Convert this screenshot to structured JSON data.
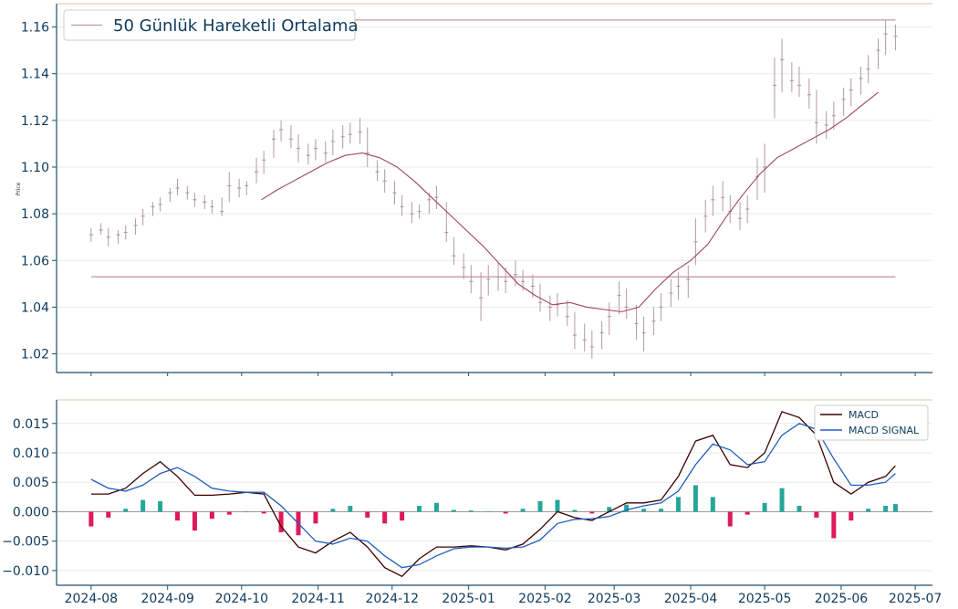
{
  "colors": {
    "axis": "#1f4e6e",
    "tick_text": "#0d3a5c",
    "grid": "#e9e9e9",
    "frame_top": "#d6c9a6",
    "candle": "#b39aa3",
    "ma": "#a0465f",
    "hline": "#c79aa8",
    "macd": "#3b0000",
    "signal": "#1f5fbf",
    "hist_pos": "#26a69a",
    "hist_neg": "#e0185c"
  },
  "chart_data": [
    {
      "type": "candlestick",
      "ylabel": "Price",
      "ylim": [
        1.012,
        1.17
      ],
      "yticks": [
        "1.02",
        "1.04",
        "1.06",
        "1.08",
        "1.10",
        "1.12",
        "1.14",
        "1.16"
      ],
      "ytick_values": [
        1.02,
        1.04,
        1.06,
        1.08,
        1.1,
        1.12,
        1.14,
        1.16
      ],
      "legend": {
        "label": "50 Günlük Hareketli Ortalama",
        "placement": "top-left"
      },
      "hlines": [
        1.053,
        1.163
      ],
      "moving_average": {
        "name": "50 Günlük Hareketli Ortalama",
        "dates": [
          "2024-10-09",
          "2024-10-15",
          "2024-10-22",
          "2024-10-29",
          "2024-11-05",
          "2024-11-12",
          "2024-11-19",
          "2024-11-26",
          "2024-12-03",
          "2024-12-10",
          "2024-12-17",
          "2024-12-24",
          "2024-12-31",
          "2025-01-07",
          "2025-01-14",
          "2025-01-21",
          "2025-01-28",
          "2025-02-04",
          "2025-02-11",
          "2025-02-18",
          "2025-02-25",
          "2025-03-04",
          "2025-03-11",
          "2025-03-18",
          "2025-03-25",
          "2025-04-01",
          "2025-04-08",
          "2025-04-15",
          "2025-04-22",
          "2025-04-29",
          "2025-05-06",
          "2025-05-13",
          "2025-05-20",
          "2025-05-27",
          "2025-06-03",
          "2025-06-10",
          "2025-06-16"
        ],
        "values": [
          1.086,
          1.09,
          1.094,
          1.098,
          1.102,
          1.105,
          1.106,
          1.104,
          1.1,
          1.094,
          1.087,
          1.08,
          1.073,
          1.066,
          1.058,
          1.05,
          1.045,
          1.041,
          1.042,
          1.04,
          1.039,
          1.038,
          1.04,
          1.048,
          1.055,
          1.06,
          1.067,
          1.078,
          1.088,
          1.097,
          1.104,
          1.108,
          1.112,
          1.116,
          1.121,
          1.127,
          1.132
        ]
      },
      "candles": [
        {
          "d": "2024-08-01",
          "h": 1.074,
          "l": 1.068,
          "c": 1.071
        },
        {
          "d": "2024-08-05",
          "h": 1.076,
          "l": 1.071,
          "c": 1.073
        },
        {
          "d": "2024-08-08",
          "h": 1.074,
          "l": 1.066,
          "c": 1.07
        },
        {
          "d": "2024-08-12",
          "h": 1.073,
          "l": 1.067,
          "c": 1.071
        },
        {
          "d": "2024-08-15",
          "h": 1.075,
          "l": 1.069,
          "c": 1.072
        },
        {
          "d": "2024-08-19",
          "h": 1.078,
          "l": 1.071,
          "c": 1.075
        },
        {
          "d": "2024-08-22",
          "h": 1.082,
          "l": 1.075,
          "c": 1.079
        },
        {
          "d": "2024-08-26",
          "h": 1.085,
          "l": 1.079,
          "c": 1.083
        },
        {
          "d": "2024-08-29",
          "h": 1.087,
          "l": 1.081,
          "c": 1.084
        },
        {
          "d": "2024-09-02",
          "h": 1.091,
          "l": 1.085,
          "c": 1.089
        },
        {
          "d": "2024-09-05",
          "h": 1.095,
          "l": 1.088,
          "c": 1.091
        },
        {
          "d": "2024-09-09",
          "h": 1.092,
          "l": 1.086,
          "c": 1.089
        },
        {
          "d": "2024-09-12",
          "h": 1.089,
          "l": 1.083,
          "c": 1.086
        },
        {
          "d": "2024-09-16",
          "h": 1.088,
          "l": 1.082,
          "c": 1.085
        },
        {
          "d": "2024-09-19",
          "h": 1.086,
          "l": 1.08,
          "c": 1.083
        },
        {
          "d": "2024-09-23",
          "h": 1.087,
          "l": 1.079,
          "c": 1.081
        },
        {
          "d": "2024-09-26",
          "h": 1.098,
          "l": 1.085,
          "c": 1.092
        },
        {
          "d": "2024-09-30",
          "h": 1.095,
          "l": 1.087,
          "c": 1.091
        },
        {
          "d": "2024-10-03",
          "h": 1.094,
          "l": 1.088,
          "c": 1.092
        },
        {
          "d": "2024-10-07",
          "h": 1.104,
          "l": 1.093,
          "c": 1.098
        },
        {
          "d": "2024-10-10",
          "h": 1.107,
          "l": 1.097,
          "c": 1.103
        },
        {
          "d": "2024-10-14",
          "h": 1.116,
          "l": 1.104,
          "c": 1.112
        },
        {
          "d": "2024-10-17",
          "h": 1.12,
          "l": 1.111,
          "c": 1.116
        },
        {
          "d": "2024-10-21",
          "h": 1.118,
          "l": 1.108,
          "c": 1.112
        },
        {
          "d": "2024-10-24",
          "h": 1.114,
          "l": 1.102,
          "c": 1.108
        },
        {
          "d": "2024-10-28",
          "h": 1.11,
          "l": 1.101,
          "c": 1.105
        },
        {
          "d": "2024-10-31",
          "h": 1.112,
          "l": 1.103,
          "c": 1.108
        },
        {
          "d": "2024-11-04",
          "h": 1.111,
          "l": 1.102,
          "c": 1.106
        },
        {
          "d": "2024-11-07",
          "h": 1.116,
          "l": 1.105,
          "c": 1.111
        },
        {
          "d": "2024-11-11",
          "h": 1.118,
          "l": 1.108,
          "c": 1.113
        },
        {
          "d": "2024-11-14",
          "h": 1.119,
          "l": 1.11,
          "c": 1.114
        },
        {
          "d": "2024-11-18",
          "h": 1.121,
          "l": 1.11,
          "c": 1.115
        },
        {
          "d": "2024-11-21",
          "h": 1.117,
          "l": 1.1,
          "c": 1.106
        },
        {
          "d": "2024-11-25",
          "h": 1.103,
          "l": 1.094,
          "c": 1.098
        },
        {
          "d": "2024-11-28",
          "h": 1.099,
          "l": 1.089,
          "c": 1.094
        },
        {
          "d": "2024-12-02",
          "h": 1.094,
          "l": 1.084,
          "c": 1.089
        },
        {
          "d": "2024-12-05",
          "h": 1.088,
          "l": 1.079,
          "c": 1.083
        },
        {
          "d": "2024-12-09",
          "h": 1.085,
          "l": 1.076,
          "c": 1.08
        },
        {
          "d": "2024-12-12",
          "h": 1.084,
          "l": 1.078,
          "c": 1.081
        },
        {
          "d": "2024-12-16",
          "h": 1.089,
          "l": 1.08,
          "c": 1.086
        },
        {
          "d": "2024-12-19",
          "h": 1.092,
          "l": 1.082,
          "c": 1.087
        },
        {
          "d": "2024-12-23",
          "h": 1.085,
          "l": 1.068,
          "c": 1.072
        },
        {
          "d": "2024-12-26",
          "h": 1.07,
          "l": 1.058,
          "c": 1.062
        },
        {
          "d": "2024-12-30",
          "h": 1.063,
          "l": 1.052,
          "c": 1.057
        },
        {
          "d": "2025-01-02",
          "h": 1.058,
          "l": 1.046,
          "c": 1.051
        },
        {
          "d": "2025-01-06",
          "h": 1.055,
          "l": 1.034,
          "c": 1.044
        },
        {
          "d": "2025-01-09",
          "h": 1.058,
          "l": 1.045,
          "c": 1.052
        },
        {
          "d": "2025-01-13",
          "h": 1.059,
          "l": 1.047,
          "c": 1.053
        },
        {
          "d": "2025-01-16",
          "h": 1.057,
          "l": 1.046,
          "c": 1.051
        },
        {
          "d": "2025-01-20",
          "h": 1.06,
          "l": 1.049,
          "c": 1.054
        },
        {
          "d": "2025-01-23",
          "h": 1.056,
          "l": 1.047,
          "c": 1.051
        },
        {
          "d": "2025-01-27",
          "h": 1.054,
          "l": 1.044,
          "c": 1.049
        },
        {
          "d": "2025-01-30",
          "h": 1.05,
          "l": 1.038,
          "c": 1.042
        },
        {
          "d": "2025-02-03",
          "h": 1.045,
          "l": 1.034,
          "c": 1.04
        },
        {
          "d": "2025-02-06",
          "h": 1.046,
          "l": 1.036,
          "c": 1.041
        },
        {
          "d": "2025-02-10",
          "h": 1.043,
          "l": 1.032,
          "c": 1.036
        },
        {
          "d": "2025-02-13",
          "h": 1.038,
          "l": 1.022,
          "c": 1.028
        },
        {
          "d": "2025-02-17",
          "h": 1.033,
          "l": 1.021,
          "c": 1.026
        },
        {
          "d": "2025-02-20",
          "h": 1.03,
          "l": 1.018,
          "c": 1.023
        },
        {
          "d": "2025-02-24",
          "h": 1.034,
          "l": 1.022,
          "c": 1.029
        },
        {
          "d": "2025-02-27",
          "h": 1.042,
          "l": 1.028,
          "c": 1.036
        },
        {
          "d": "2025-03-03",
          "h": 1.051,
          "l": 1.037,
          "c": 1.045
        },
        {
          "d": "2025-03-06",
          "h": 1.048,
          "l": 1.035,
          "c": 1.04
        },
        {
          "d": "2025-03-10",
          "h": 1.041,
          "l": 1.026,
          "c": 1.033
        },
        {
          "d": "2025-03-13",
          "h": 1.036,
          "l": 1.021,
          "c": 1.029
        },
        {
          "d": "2025-03-17",
          "h": 1.04,
          "l": 1.028,
          "c": 1.034
        },
        {
          "d": "2025-03-20",
          "h": 1.046,
          "l": 1.034,
          "c": 1.04
        },
        {
          "d": "2025-03-24",
          "h": 1.052,
          "l": 1.04,
          "c": 1.046
        },
        {
          "d": "2025-03-27",
          "h": 1.055,
          "l": 1.043,
          "c": 1.049
        },
        {
          "d": "2025-03-31",
          "h": 1.058,
          "l": 1.044,
          "c": 1.052
        },
        {
          "d": "2025-04-03",
          "h": 1.078,
          "l": 1.058,
          "c": 1.068
        },
        {
          "d": "2025-04-07",
          "h": 1.086,
          "l": 1.072,
          "c": 1.079
        },
        {
          "d": "2025-04-10",
          "h": 1.092,
          "l": 1.079,
          "c": 1.086
        },
        {
          "d": "2025-04-14",
          "h": 1.094,
          "l": 1.081,
          "c": 1.087
        },
        {
          "d": "2025-04-17",
          "h": 1.088,
          "l": 1.076,
          "c": 1.081
        },
        {
          "d": "2025-04-21",
          "h": 1.085,
          "l": 1.073,
          "c": 1.078
        },
        {
          "d": "2025-04-24",
          "h": 1.088,
          "l": 1.076,
          "c": 1.082
        },
        {
          "d": "2025-04-28",
          "h": 1.104,
          "l": 1.086,
          "c": 1.096
        },
        {
          "d": "2025-05-01",
          "h": 1.11,
          "l": 1.089,
          "c": 1.1
        },
        {
          "d": "2025-05-05",
          "h": 1.147,
          "l": 1.121,
          "c": 1.135
        },
        {
          "d": "2025-05-08",
          "h": 1.155,
          "l": 1.132,
          "c": 1.146
        },
        {
          "d": "2025-05-12",
          "h": 1.145,
          "l": 1.132,
          "c": 1.137
        },
        {
          "d": "2025-05-15",
          "h": 1.143,
          "l": 1.13,
          "c": 1.135
        },
        {
          "d": "2025-05-19",
          "h": 1.138,
          "l": 1.125,
          "c": 1.131
        },
        {
          "d": "2025-05-22",
          "h": 1.133,
          "l": 1.11,
          "c": 1.119
        },
        {
          "d": "2025-05-26",
          "h": 1.124,
          "l": 1.112,
          "c": 1.118
        },
        {
          "d": "2025-05-29",
          "h": 1.128,
          "l": 1.116,
          "c": 1.122
        },
        {
          "d": "2025-06-02",
          "h": 1.134,
          "l": 1.122,
          "c": 1.129
        },
        {
          "d": "2025-06-05",
          "h": 1.138,
          "l": 1.126,
          "c": 1.133
        },
        {
          "d": "2025-06-09",
          "h": 1.143,
          "l": 1.131,
          "c": 1.138
        },
        {
          "d": "2025-06-12",
          "h": 1.148,
          "l": 1.136,
          "c": 1.142
        },
        {
          "d": "2025-06-16",
          "h": 1.155,
          "l": 1.142,
          "c": 1.15
        },
        {
          "d": "2025-06-19",
          "h": 1.163,
          "l": 1.148,
          "c": 1.157
        },
        {
          "d": "2025-06-23",
          "h": 1.161,
          "l": 1.15,
          "c": 1.156
        }
      ]
    },
    {
      "type": "line",
      "ylim": [
        -0.0125,
        0.019
      ],
      "yticks": [
        "−0.010",
        "−0.005",
        "0.000",
        "0.005",
        "0.010",
        "0.015"
      ],
      "ytick_values": [
        -0.01,
        -0.005,
        0.0,
        0.005,
        0.01,
        0.015
      ],
      "xticks": [
        "2024-08",
        "2024-09",
        "2024-10",
        "2024-11",
        "2024-12",
        "2025-01",
        "2025-02",
        "2025-03",
        "2025-04",
        "2025-05",
        "2025-06",
        "2025-07"
      ],
      "legend": {
        "placement": "top-right"
      },
      "dates": [
        "2024-08-01",
        "2024-08-08",
        "2024-08-15",
        "2024-08-22",
        "2024-08-29",
        "2024-09-05",
        "2024-09-12",
        "2024-09-19",
        "2024-09-26",
        "2024-10-03",
        "2024-10-10",
        "2024-10-17",
        "2024-10-24",
        "2024-10-31",
        "2024-11-07",
        "2024-11-14",
        "2024-11-21",
        "2024-11-28",
        "2024-12-05",
        "2024-12-12",
        "2024-12-19",
        "2024-12-26",
        "2025-01-02",
        "2025-01-09",
        "2025-01-16",
        "2025-01-23",
        "2025-01-30",
        "2025-02-06",
        "2025-02-13",
        "2025-02-20",
        "2025-02-27",
        "2025-03-06",
        "2025-03-13",
        "2025-03-20",
        "2025-03-27",
        "2025-04-03",
        "2025-04-10",
        "2025-04-17",
        "2025-04-24",
        "2025-05-01",
        "2025-05-08",
        "2025-05-15",
        "2025-05-22",
        "2025-05-29",
        "2025-06-05",
        "2025-06-12",
        "2025-06-19",
        "2025-06-23"
      ],
      "series": [
        {
          "name": "MACD",
          "values": [
            0.003,
            0.003,
            0.004,
            0.0065,
            0.0085,
            0.006,
            0.0028,
            0.0028,
            0.003,
            0.0033,
            0.003,
            -0.0025,
            -0.006,
            -0.007,
            -0.005,
            -0.0035,
            -0.006,
            -0.0095,
            -0.011,
            -0.008,
            -0.006,
            -0.006,
            -0.0058,
            -0.006,
            -0.0065,
            -0.0055,
            -0.003,
            0.0,
            -0.001,
            -0.0015,
            0.0,
            0.0015,
            0.0015,
            0.002,
            0.006,
            0.012,
            0.013,
            0.008,
            0.0075,
            0.01,
            0.017,
            0.016,
            0.013,
            0.005,
            0.003,
            0.005,
            0.006,
            0.0078
          ]
        },
        {
          "name": "MACD SIGNAL",
          "values": [
            0.0055,
            0.004,
            0.0035,
            0.0045,
            0.0065,
            0.0075,
            0.006,
            0.004,
            0.0035,
            0.0033,
            0.0033,
            0.001,
            -0.002,
            -0.005,
            -0.0055,
            -0.0045,
            -0.005,
            -0.0075,
            -0.0095,
            -0.009,
            -0.0075,
            -0.0063,
            -0.006,
            -0.006,
            -0.0062,
            -0.006,
            -0.0048,
            -0.002,
            -0.0013,
            -0.0012,
            -0.0008,
            0.0003,
            0.001,
            0.0015,
            0.0035,
            0.008,
            0.0115,
            0.0105,
            0.008,
            0.0085,
            0.013,
            0.015,
            0.014,
            0.009,
            0.0045,
            0.0045,
            0.005,
            0.0065
          ]
        }
      ],
      "histogram": {
        "positive_color": "#26a69a",
        "negative_color": "#e0185c",
        "values": [
          -0.0025,
          -0.001,
          0.0005,
          0.002,
          0.0018,
          -0.0015,
          -0.0032,
          -0.0012,
          -0.0005,
          0.0,
          -0.0003,
          -0.0035,
          -0.004,
          -0.002,
          0.0005,
          0.001,
          -0.001,
          -0.002,
          -0.0015,
          0.001,
          0.0015,
          0.0003,
          0.0002,
          0.0,
          -0.0003,
          0.0005,
          0.0018,
          0.002,
          0.0003,
          -0.0003,
          0.0008,
          0.0012,
          0.0005,
          0.0005,
          0.0025,
          0.0045,
          0.0025,
          -0.0025,
          -0.0005,
          0.0015,
          0.004,
          0.001,
          -0.001,
          -0.0045,
          -0.0015,
          0.0005,
          0.001,
          0.0013
        ]
      }
    }
  ]
}
